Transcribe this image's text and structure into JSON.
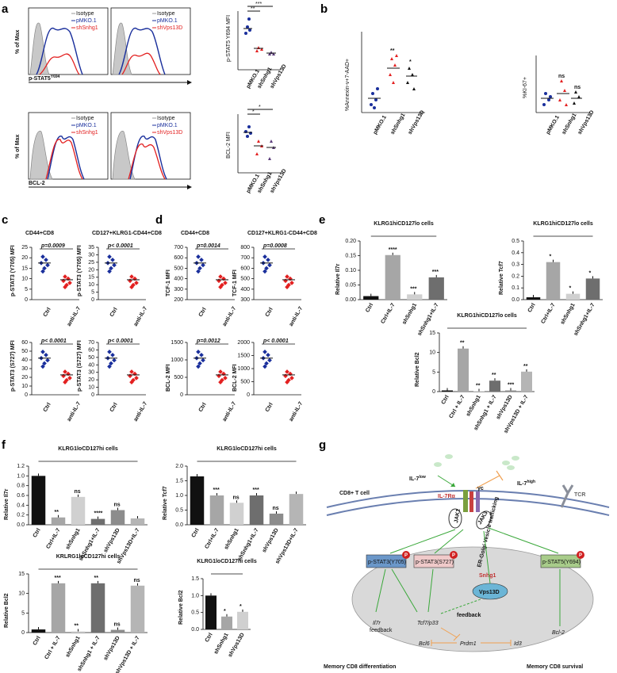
{
  "panels": {
    "a": {
      "label": "a",
      "legend_top": [
        "Isotype",
        "pMKO.1",
        "shSnhg1",
        "Isotype",
        "pMKO.1",
        "shVps13D"
      ],
      "legend_bottom": [
        "Isotype",
        "pMKO.1",
        "shSnhg1",
        "Isotype",
        "pMKO.1",
        "shVps13D"
      ],
      "hist_ylabel": "% of Max",
      "hist_xlabel_top": "p-STAT5",
      "hist_xlabel_top_sup": "Y694",
      "hist_xlabel_bottom": "BCL-2",
      "scatter_top_ylabel": "p-STAT5 Y694 MFI",
      "scatter_bottom_ylabel": "BCL-2 MFI",
      "groups": [
        "pMKO.1",
        "shSnhg1",
        "shVps13D"
      ],
      "sig_top": [
        "**",
        "***"
      ],
      "sig_bottom": [
        "*",
        "*"
      ]
    },
    "b": {
      "label": "b",
      "left_ylabel": "%Annexin-v+7-AAD+",
      "right_ylabel": "%KI-67+",
      "groups": [
        "pMKO.1",
        "shSnhg1",
        "shVps13D"
      ],
      "sig_left": [
        "**",
        "*"
      ],
      "sig_right": [
        "ns",
        "ns"
      ]
    },
    "c": {
      "label": "c",
      "titles": [
        "CD44+CD8",
        "CD127+KLRG1-CD44+CD8"
      ],
      "ylabels": [
        "p-STAT3 (Y705) MFI",
        "p-STAT3 (Y705) MFI",
        "p-STAT3 (S727) MFI",
        "p-STAT3 (S727) MFI"
      ],
      "pvals": [
        "p=0.0009",
        "p< 0.0001",
        "p< 0.0001",
        "p< 0.0001"
      ],
      "groups": [
        "Ctrl",
        "anti-IL-7"
      ],
      "yticks_top": [
        "0",
        "5",
        "10",
        "15",
        "20",
        "25"
      ],
      "yticks_top2": [
        "0",
        "5",
        "10",
        "15",
        "20",
        "25",
        "30",
        "35"
      ],
      "yticks_bot": [
        "0",
        "10",
        "20",
        "30",
        "40",
        "50",
        "60"
      ],
      "yticks_bot2": [
        "0",
        "10",
        "20",
        "30",
        "40",
        "50",
        "60",
        "70"
      ]
    },
    "d": {
      "label": "d",
      "titles": [
        "CD44+CD8",
        "CD127+KLRG1-CD44+CD8"
      ],
      "ylabels": [
        "TCF-1 MFI",
        "TCF-1 MFI",
        "BCL-2 MFI",
        "BCL-2 MFI"
      ],
      "pvals": [
        "p=0.0014",
        "p=0.0008",
        "p=0.0012",
        "p< 0.0001"
      ],
      "groups": [
        "Ctrl",
        "anti-IL-7"
      ],
      "yticks_top": [
        "200",
        "300",
        "400",
        "500",
        "600",
        "700"
      ],
      "yticks_top2": [
        "300",
        "400",
        "500",
        "600",
        "700",
        "800"
      ],
      "yticks_bot": [
        "0",
        "500",
        "1000",
        "1500"
      ],
      "yticks_bot2": [
        "0",
        "500",
        "1000",
        "1500",
        "2000"
      ]
    },
    "e": {
      "label": "e",
      "title1": "KLRG1hiCD127lo cells",
      "title2": "KLRG1hiCD127lo cells",
      "title3": "KLRG1hiCD127lo cells",
      "ylabel1": "Relative Il7r",
      "ylabel2": "Relative Tcf7",
      "ylabel3": "Relative Bcl2",
      "cats1": [
        "Ctrl",
        "Ctrl+IL-7",
        "shSnhg1",
        "shSnhg1+IL-7"
      ],
      "vals1": [
        0.012,
        0.152,
        0.018,
        0.076
      ],
      "sig1": [
        "****",
        "***",
        "***"
      ],
      "yticks1": [
        "0.00",
        "0.05",
        "0.10",
        "0.15",
        "0.20"
      ],
      "cats2": [
        "Ctrl",
        "Ctrl+IL-7",
        "shSnhg1",
        "shSnhg1+IL-7"
      ],
      "vals2": [
        0.02,
        0.32,
        0.05,
        0.18
      ],
      "sig2": [
        "*",
        "*",
        "*"
      ],
      "yticks2": [
        "0.0",
        "0.1",
        "0.2",
        "0.3",
        "0.4",
        "0.5"
      ],
      "cats3": [
        "Ctrl",
        "Ctrl + IL-7",
        "shSnhg1",
        "shSnhg1 + IL-7",
        "shVps13D",
        "shVps13D + IL-7"
      ],
      "vals3": [
        0.3,
        11.0,
        0.1,
        2.8,
        0.3,
        5.1
      ],
      "sig3": [
        "**",
        "**",
        "**",
        "***",
        "**"
      ],
      "yticks3": [
        "0",
        "5",
        "10",
        "15"
      ]
    },
    "f": {
      "label": "f",
      "title1": "KLRG1loCD127hi cells",
      "title2": "KLRG1loCD127hi cells",
      "title3": "KRLRG1loCD127hi cells",
      "title4": "KLRG1loCD127hi cells",
      "ylabel1": "Relative Il7r",
      "ylabel2": "Relative Tcf7",
      "ylabel3": "Relative Bcl2",
      "ylabel4": "Relative Bcl2",
      "cats1": [
        "Ctrl",
        "Ctrl+IL-7",
        "shSnhg1",
        "shSnhg1+IL-7",
        "shVps13D",
        "shVps13D+IL-7"
      ],
      "vals1": [
        1.0,
        0.15,
        0.57,
        0.12,
        0.3,
        0.13
      ],
      "sig1": [
        "**",
        "ns",
        "****",
        "ns"
      ],
      "yticks1": [
        "0.0",
        "0.2",
        "0.4",
        "0.6",
        "0.8",
        "1.0",
        "1.2"
      ],
      "cats2": [
        "Ctrl",
        "Ctrl+IL-7",
        "shSnhg1",
        "shSnhg1+IL-7",
        "shVps13D",
        "shVps13D+IL-7"
      ],
      "vals2": [
        1.65,
        1.0,
        0.75,
        1.0,
        0.38,
        1.05
      ],
      "sig2": [
        "***",
        "ns",
        "***",
        "ns"
      ],
      "yticks2": [
        "0.0",
        "0.5",
        "1.0",
        "1.5",
        "2.0"
      ],
      "cats3": [
        "Ctrl",
        "Ctrl + IL-7",
        "shSnhg1",
        "shSnhg1 + IL-7",
        "shVps13D",
        "shVps13D + IL-7"
      ],
      "vals3": [
        0.8,
        12.6,
        0.3,
        12.6,
        0.7,
        12.0
      ],
      "sig3": [
        "***",
        "**",
        "**",
        "ns",
        "ns"
      ],
      "yticks3": [
        "0",
        "5",
        "10",
        "15"
      ],
      "cats4": [
        "Ctrl",
        "shSnhg1",
        "shVps13D"
      ],
      "vals4": [
        1.0,
        0.38,
        0.52
      ],
      "sig4": [
        "*",
        "*"
      ],
      "yticks4": [
        "0.0",
        "0.5",
        "1.0",
        "1.5"
      ]
    },
    "g": {
      "label": "g",
      "il7_low": "IL-7",
      "il7_low_sup": "low",
      "il7_high": "IL-7",
      "il7_high_sup": "high",
      "receptor": "IL-7Rα",
      "gamma_c": "γc",
      "tcr": "TCR",
      "cell": "CD8+ T cell",
      "jak1": "JAK1",
      "jak3": "JAK3",
      "vesicle": "ER-Golgi Vesicle trafficking",
      "snhg1": "Snhg1",
      "vps13d": "Vps13D",
      "pstat3_y705": "p-STAT3(Y705)",
      "pstat3_s727": "p-STAT3(S727)",
      "pstat5": "p-STAT5(Y694)",
      "p": "P",
      "il7r_feedback_1": "Il7r",
      "il7r_feedback_2": "feedback",
      "tcf7": "Tcf7/p33",
      "feedback": "feedback",
      "bcl2": "Bcl-2",
      "bcl6": "Bcl6",
      "prdm1": "Prdm1",
      "id3": "Id3",
      "memory_diff": "Memory CD8 differentiation",
      "memory_surv": "Memory CD8 survival"
    }
  }
}
